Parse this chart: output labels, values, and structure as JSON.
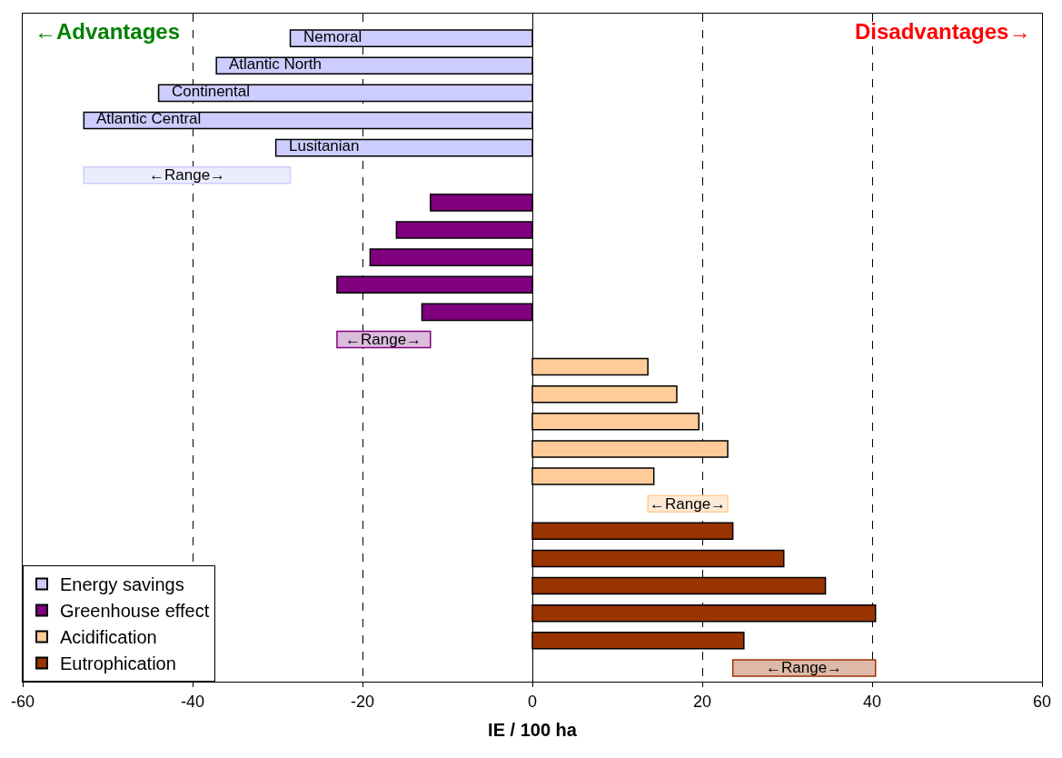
{
  "chart_data": {
    "type": "bar",
    "orientation": "horizontal",
    "xlabel": "IE / 100 ha",
    "annotations": [
      "←Advantages",
      "Disadvantages→"
    ],
    "categories": [
      "Nemoral",
      "Atlantic North",
      "Continental",
      "Atlantic Central",
      "Lusitanian",
      "←Range→",
      null,
      null,
      null,
      null,
      null,
      "←Range→",
      null,
      null,
      null,
      null,
      null,
      "←Range→",
      null,
      null,
      null,
      null,
      null,
      "←Range→"
    ],
    "series": [
      {
        "name": "Energy savings",
        "color": "#ccccff",
        "values": [
          -28.5,
          -37.2,
          -44.0,
          -52.8,
          -30.2,
          24.3,
          null,
          null,
          null,
          null,
          null,
          null,
          null,
          null,
          null,
          null,
          null,
          null,
          null,
          null,
          null,
          null,
          null,
          null
        ],
        "base": [
          null,
          null,
          null,
          null,
          null,
          -52.8,
          null,
          null,
          null,
          null,
          null,
          null,
          null,
          null,
          null,
          null,
          null,
          null,
          null,
          null,
          null,
          null,
          null,
          null
        ],
        "colors": [
          "#ccccff",
          "#ccccff",
          "#ccccff",
          "#ccccff",
          "#ccccff",
          "#ececff",
          null,
          null,
          null,
          null,
          null,
          null,
          null,
          null,
          null,
          null,
          null,
          null,
          null,
          null,
          null,
          null,
          null,
          null
        ]
      },
      {
        "name": "Greenhouse effect",
        "color": "#800080",
        "values": [
          null,
          null,
          null,
          null,
          null,
          null,
          -12.0,
          -16.0,
          -19.1,
          -23.0,
          -13.0,
          11.0,
          null,
          null,
          null,
          null,
          null,
          null,
          null,
          null,
          null,
          null,
          null,
          null
        ],
        "base": [
          null,
          null,
          null,
          null,
          null,
          null,
          null,
          null,
          null,
          null,
          null,
          -23.0,
          null,
          null,
          null,
          null,
          null,
          null,
          null,
          null,
          null,
          null,
          null,
          null
        ],
        "colors": [
          null,
          null,
          null,
          null,
          null,
          null,
          "#800080",
          "#800080",
          "#800080",
          "#800080",
          "#800080",
          "#dcbcdc",
          null,
          null,
          null,
          null,
          null,
          null,
          null,
          null,
          null,
          null,
          null,
          null
        ]
      },
      {
        "name": "Acidification",
        "color": "#ffcc99",
        "values": [
          null,
          null,
          null,
          null,
          null,
          null,
          null,
          null,
          null,
          null,
          null,
          null,
          13.6,
          17.0,
          19.6,
          23.0,
          14.3,
          9.4,
          null,
          null,
          null,
          null,
          null,
          null
        ],
        "base": [
          null,
          null,
          null,
          null,
          null,
          null,
          null,
          null,
          null,
          null,
          null,
          null,
          null,
          null,
          null,
          null,
          null,
          13.6,
          null,
          null,
          null,
          null,
          null,
          null
        ],
        "colors": [
          null,
          null,
          null,
          null,
          null,
          null,
          null,
          null,
          null,
          null,
          null,
          null,
          "#ffcc99",
          "#ffcc99",
          "#ffcc99",
          "#ffcc99",
          "#ffcc99",
          "#ffead6",
          null,
          null,
          null,
          null,
          null,
          null
        ]
      },
      {
        "name": "Eutrophication",
        "color": "#993300",
        "values": [
          null,
          null,
          null,
          null,
          null,
          null,
          null,
          null,
          null,
          null,
          null,
          null,
          null,
          null,
          null,
          null,
          null,
          null,
          23.6,
          29.6,
          34.5,
          40.4,
          24.9,
          16.8
        ],
        "base": [
          null,
          null,
          null,
          null,
          null,
          null,
          null,
          null,
          null,
          null,
          null,
          null,
          null,
          null,
          null,
          null,
          null,
          null,
          null,
          null,
          null,
          null,
          null,
          23.6
        ],
        "colors": [
          null,
          null,
          null,
          null,
          null,
          null,
          null,
          null,
          null,
          null,
          null,
          null,
          null,
          null,
          null,
          null,
          null,
          null,
          "#993300",
          "#993300",
          "#993300",
          "#993300",
          "#993300",
          "#dfb9a8"
        ]
      }
    ],
    "xlim": [
      -60,
      60
    ],
    "xticks": [
      -60,
      -40,
      -20,
      0,
      20,
      40,
      60
    ],
    "grid": "x",
    "legend": "bottom left",
    "tick_labels": "x"
  }
}
